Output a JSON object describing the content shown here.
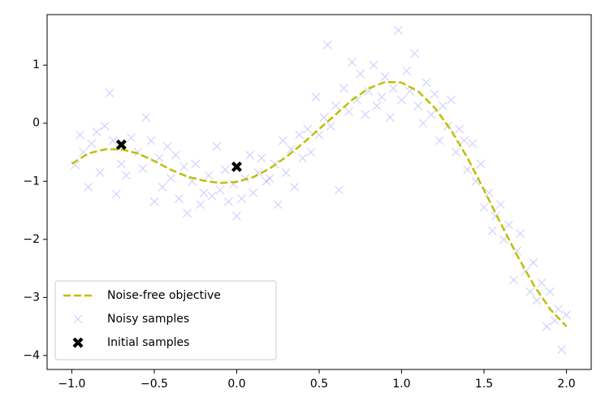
{
  "chart_data": {
    "type": "line",
    "xlim": [
      -1.15,
      2.15
    ],
    "ylim": [
      -4.24,
      1.87
    ],
    "xticks": [
      {
        "value": -1.0,
        "label": "−1.0"
      },
      {
        "value": -0.5,
        "label": "−0.5"
      },
      {
        "value": 0.0,
        "label": "0.0"
      },
      {
        "value": 0.5,
        "label": "0.5"
      },
      {
        "value": 1.0,
        "label": "1.0"
      },
      {
        "value": 1.5,
        "label": "1.5"
      },
      {
        "value": 2.0,
        "label": "2.0"
      }
    ],
    "yticks": [
      1,
      0,
      {
        "value": -1,
        "label": "−1"
      },
      {
        "value": -2,
        "label": "−2"
      },
      {
        "value": -3,
        "label": "−3"
      },
      {
        "value": -4,
        "label": "−4"
      }
    ],
    "grid": false,
    "legend": "lower left",
    "series": [
      {
        "name": "Noise-free objective",
        "type": "line",
        "color": "#bfbf00",
        "x": [
          -1.0,
          -0.9,
          -0.8,
          -0.7,
          -0.6,
          -0.5,
          -0.4,
          -0.3,
          -0.2,
          -0.1,
          0.0,
          0.1,
          0.2,
          0.3,
          0.4,
          0.5,
          0.6,
          0.7,
          0.8,
          0.9,
          1.0,
          1.1,
          1.2,
          1.3,
          1.4,
          1.5,
          1.6,
          1.7,
          1.8,
          1.9,
          2.0
        ],
        "values": [
          -0.7,
          -0.52,
          -0.45,
          -0.45,
          -0.52,
          -0.65,
          -0.8,
          -0.92,
          -0.99,
          -1.03,
          -1.01,
          -0.93,
          -0.78,
          -0.58,
          -0.35,
          -0.1,
          0.15,
          0.4,
          0.6,
          0.71,
          0.7,
          0.55,
          0.27,
          -0.12,
          -0.6,
          -1.15,
          -1.72,
          -2.27,
          -2.78,
          -3.2,
          -3.5
        ]
      },
      {
        "name": "Noisy samples",
        "type": "scatter",
        "color": "#0000ff",
        "x": [
          -0.98,
          -0.95,
          -0.93,
          -0.9,
          -0.88,
          -0.85,
          -0.83,
          -0.8,
          -0.77,
          -0.75,
          -0.73,
          -0.7,
          -0.67,
          -0.64,
          -0.6,
          -0.57,
          -0.55,
          -0.52,
          -0.5,
          -0.47,
          -0.45,
          -0.42,
          -0.4,
          -0.37,
          -0.35,
          -0.32,
          -0.3,
          -0.27,
          -0.25,
          -0.22,
          -0.2,
          -0.17,
          -0.15,
          -0.12,
          -0.1,
          -0.07,
          -0.05,
          -0.02,
          0.0,
          0.03,
          0.05,
          0.08,
          0.1,
          0.13,
          0.15,
          0.18,
          0.2,
          0.23,
          0.25,
          0.28,
          0.3,
          0.33,
          0.35,
          0.38,
          0.4,
          0.43,
          0.45,
          0.48,
          0.5,
          0.53,
          0.55,
          0.57,
          0.6,
          0.62,
          0.65,
          0.68,
          0.7,
          0.73,
          0.75,
          0.78,
          0.8,
          0.83,
          0.85,
          0.88,
          0.9,
          0.93,
          0.95,
          0.98,
          1.0,
          1.03,
          1.05,
          1.08,
          1.1,
          1.13,
          1.15,
          1.18,
          1.2,
          1.23,
          1.25,
          1.28,
          1.3,
          1.33,
          1.35,
          1.38,
          1.4,
          1.43,
          1.45,
          1.48,
          1.5,
          1.53,
          1.55,
          1.57,
          1.6,
          1.62,
          1.65,
          1.68,
          1.7,
          1.72,
          1.75,
          1.78,
          1.8,
          1.82,
          1.85,
          1.88,
          1.9,
          1.93,
          1.95,
          1.97,
          2.0
        ],
        "values": [
          -0.72,
          -0.2,
          -0.5,
          -1.1,
          -0.35,
          -0.15,
          -0.85,
          -0.05,
          0.52,
          -0.3,
          -1.22,
          -0.7,
          -0.9,
          -0.25,
          -0.5,
          -0.78,
          0.1,
          -0.3,
          -1.35,
          -0.6,
          -1.1,
          -0.4,
          -0.95,
          -0.55,
          -1.3,
          -0.75,
          -1.55,
          -1.0,
          -0.7,
          -1.4,
          -1.2,
          -0.9,
          -1.25,
          -0.4,
          -1.15,
          -0.8,
          -1.35,
          -1.05,
          -1.6,
          -1.3,
          -0.95,
          -0.55,
          -1.2,
          -0.85,
          -0.6,
          -1.0,
          -0.95,
          -0.7,
          -1.4,
          -0.3,
          -0.85,
          -0.45,
          -1.1,
          -0.2,
          -0.6,
          -0.1,
          -0.5,
          0.45,
          -0.2,
          0.1,
          1.35,
          -0.05,
          0.3,
          -1.15,
          0.6,
          0.2,
          1.05,
          0.4,
          0.85,
          0.15,
          0.55,
          1.0,
          0.3,
          0.45,
          0.8,
          0.1,
          0.6,
          1.6,
          0.4,
          0.9,
          0.55,
          1.2,
          0.3,
          0.0,
          0.7,
          0.15,
          0.5,
          -0.3,
          0.3,
          -0.05,
          0.4,
          -0.5,
          -0.1,
          -0.3,
          -0.8,
          -0.35,
          -1.0,
          -0.7,
          -1.45,
          -1.2,
          -1.85,
          -1.6,
          -1.4,
          -2.0,
          -1.75,
          -2.7,
          -2.2,
          -1.9,
          -2.55,
          -2.9,
          -2.4,
          -3.05,
          -2.75,
          -3.5,
          -2.9,
          -3.4,
          -3.2,
          -3.9,
          -3.3
        ]
      },
      {
        "name": "Initial samples",
        "type": "scatter",
        "color": "#000000",
        "x": [
          -0.7,
          0.0
        ],
        "values": [
          -0.37,
          -0.75
        ]
      }
    ]
  }
}
